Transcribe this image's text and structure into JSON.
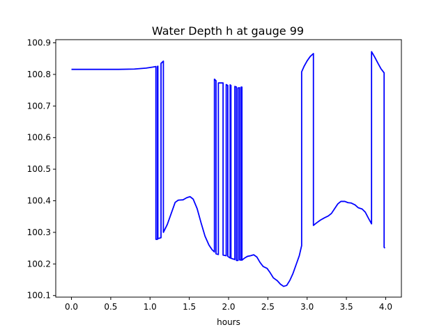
{
  "chart_data": {
    "type": "line",
    "title": "Water Depth h at gauge 99",
    "xlabel": "hours",
    "ylabel": "",
    "xlim": [
      -0.2,
      4.2
    ],
    "ylim": [
      100.095,
      100.91
    ],
    "xticks": [
      0.0,
      0.5,
      1.0,
      1.5,
      2.0,
      2.5,
      3.0,
      3.5,
      4.0
    ],
    "xtick_labels": [
      "0.0",
      "0.5",
      "1.0",
      "1.5",
      "2.0",
      "2.5",
      "3.0",
      "3.5",
      "4.0"
    ],
    "yticks": [
      100.1,
      100.2,
      100.3,
      100.4,
      100.5,
      100.6,
      100.7,
      100.8,
      100.9
    ],
    "ytick_labels": [
      "100.1",
      "100.2",
      "100.3",
      "100.4",
      "100.5",
      "100.6",
      "100.7",
      "100.8",
      "100.9"
    ],
    "grid": false,
    "series": [
      {
        "color": "#0000ff",
        "points": [
          [
            0.0,
            100.816
          ],
          [
            0.2,
            100.816
          ],
          [
            0.4,
            100.816
          ],
          [
            0.6,
            100.816
          ],
          [
            0.8,
            100.817
          ],
          [
            0.95,
            100.82
          ],
          [
            1.03,
            100.823
          ],
          [
            1.075,
            100.825
          ],
          [
            1.075,
            100.278
          ],
          [
            1.095,
            100.278
          ],
          [
            1.095,
            100.825
          ],
          [
            1.1,
            100.826
          ],
          [
            1.1,
            100.28
          ],
          [
            1.14,
            100.283
          ],
          [
            1.14,
            100.835
          ],
          [
            1.17,
            100.842
          ],
          [
            1.17,
            100.3
          ],
          [
            1.22,
            100.325
          ],
          [
            1.27,
            100.36
          ],
          [
            1.32,
            100.395
          ],
          [
            1.36,
            100.402
          ],
          [
            1.42,
            100.403
          ],
          [
            1.47,
            100.41
          ],
          [
            1.51,
            100.413
          ],
          [
            1.55,
            100.405
          ],
          [
            1.6,
            100.375
          ],
          [
            1.65,
            100.33
          ],
          [
            1.7,
            100.288
          ],
          [
            1.75,
            100.26
          ],
          [
            1.79,
            100.245
          ],
          [
            1.82,
            100.238
          ],
          [
            1.82,
            100.785
          ],
          [
            1.84,
            100.78
          ],
          [
            1.84,
            100.232
          ],
          [
            1.87,
            100.23
          ],
          [
            1.87,
            100.773
          ],
          [
            1.93,
            100.773
          ],
          [
            1.93,
            100.228
          ],
          [
            1.97,
            100.226
          ],
          [
            1.97,
            100.768
          ],
          [
            1.99,
            100.765
          ],
          [
            1.99,
            100.224
          ],
          [
            2.02,
            100.219
          ],
          [
            2.02,
            100.767
          ],
          [
            2.03,
            100.765
          ],
          [
            2.03,
            100.218
          ],
          [
            2.08,
            100.214
          ],
          [
            2.08,
            100.762
          ],
          [
            2.1,
            100.76
          ],
          [
            2.1,
            100.211
          ],
          [
            2.12,
            100.211
          ],
          [
            2.12,
            100.757
          ],
          [
            2.14,
            100.758
          ],
          [
            2.14,
            100.213
          ],
          [
            2.16,
            100.212
          ],
          [
            2.16,
            100.76
          ],
          [
            2.17,
            100.76
          ],
          [
            2.17,
            100.212
          ],
          [
            2.2,
            100.218
          ],
          [
            2.24,
            100.224
          ],
          [
            2.28,
            100.226
          ],
          [
            2.32,
            100.229
          ],
          [
            2.36,
            100.222
          ],
          [
            2.4,
            100.205
          ],
          [
            2.44,
            100.192
          ],
          [
            2.49,
            100.186
          ],
          [
            2.53,
            100.172
          ],
          [
            2.57,
            100.156
          ],
          [
            2.62,
            100.147
          ],
          [
            2.66,
            100.136
          ],
          [
            2.7,
            100.129
          ],
          [
            2.74,
            100.132
          ],
          [
            2.78,
            100.148
          ],
          [
            2.82,
            100.17
          ],
          [
            2.86,
            100.198
          ],
          [
            2.9,
            100.226
          ],
          [
            2.93,
            100.258
          ],
          [
            2.93,
            100.808
          ],
          [
            2.96,
            100.825
          ],
          [
            3.0,
            100.843
          ],
          [
            3.04,
            100.857
          ],
          [
            3.08,
            100.866
          ],
          [
            3.08,
            100.322
          ],
          [
            3.12,
            100.33
          ],
          [
            3.17,
            100.339
          ],
          [
            3.22,
            100.346
          ],
          [
            3.27,
            100.352
          ],
          [
            3.31,
            100.36
          ],
          [
            3.35,
            100.375
          ],
          [
            3.39,
            100.39
          ],
          [
            3.43,
            100.398
          ],
          [
            3.48,
            100.398
          ],
          [
            3.52,
            100.394
          ],
          [
            3.56,
            100.393
          ],
          [
            3.61,
            100.387
          ],
          [
            3.65,
            100.378
          ],
          [
            3.7,
            100.374
          ],
          [
            3.74,
            100.364
          ],
          [
            3.78,
            100.345
          ],
          [
            3.82,
            100.327
          ],
          [
            3.82,
            100.872
          ],
          [
            3.86,
            100.855
          ],
          [
            3.9,
            100.836
          ],
          [
            3.94,
            100.818
          ],
          [
            3.98,
            100.805
          ],
          [
            3.98,
            100.253
          ],
          [
            3.99,
            100.25
          ]
        ]
      }
    ]
  }
}
